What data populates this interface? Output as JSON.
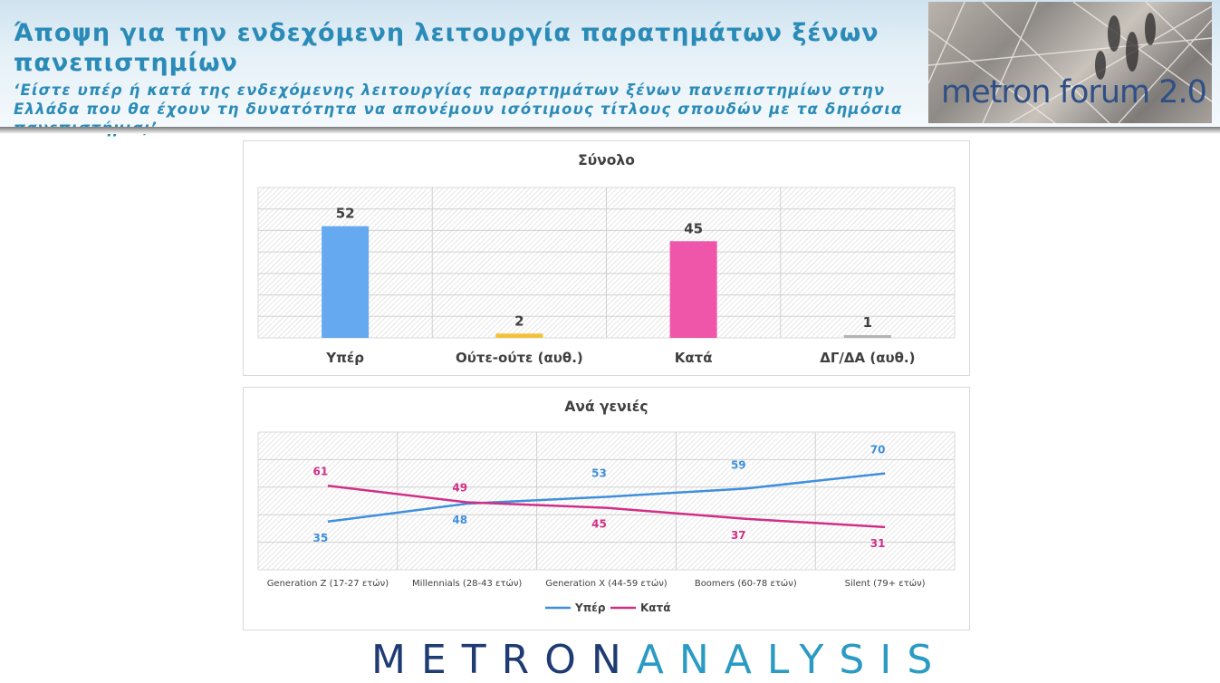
{
  "header": {
    "title": "Άποψη για την ενδεχόμενη λειτουργία παρατημάτων ξένων πανεπιστημίων",
    "subtitle": "‘Είστε υπέρ ή κατά της ενδεχόμενης λειτουργίας παραρτημάτων ξένων πανεπιστημίων στην Ελλάδα που θα έχουν τη δυνατότητα να απονέμουν ισότιμους τίτλους σπουδών με τα δημόσια πανεπιστήμια;’",
    "logo_text": "metron forum 2.0"
  },
  "colors": {
    "upper": "#3f8fdc",
    "kata": "#d12f86",
    "yellow": "#f2c13a",
    "gray": "#a6a6a6",
    "title": "#2b8bb8"
  },
  "chart_data": [
    {
      "type": "bar",
      "title": "Σύνολο",
      "categories": [
        "Υπέρ",
        "Ούτε-ούτε (αυθ.)",
        "Κατά",
        "ΔΓ/ΔΑ (αυθ.)"
      ],
      "values": [
        52,
        2,
        45,
        1
      ],
      "colors": [
        "#65aaf0",
        "#f2c13a",
        "#ef55a8",
        "#b3b3b3"
      ],
      "ylim": [
        0,
        70
      ],
      "grid": true,
      "legend": "none"
    },
    {
      "type": "line",
      "title": "Ανά γενιές",
      "categories": [
        "Generation Z (17-27 ετών)",
        "Millennials (28-43 ετών)",
        "Generation X (44-59 ετών)",
        "Boomers (60-78 ετών)",
        "Silent (79+ ετών)"
      ],
      "series": [
        {
          "name": "Υπέρ",
          "values": [
            35,
            48,
            53,
            59,
            70
          ],
          "color": "#3f8fdc"
        },
        {
          "name": "Κατά",
          "values": [
            61,
            49,
            45,
            37,
            31
          ],
          "color": "#d12f86"
        }
      ],
      "ylim": [
        0,
        100
      ],
      "grid": true,
      "legend": "bottom"
    }
  ],
  "footer": {
    "brand_part1": "METRON",
    "brand_part2": "ANALYSIS"
  }
}
